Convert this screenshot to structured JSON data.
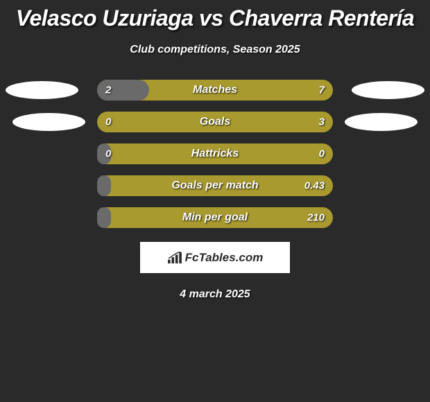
{
  "header": {
    "title": "Velasco Uzuriaga vs Chaverra Rentería",
    "subtitle": "Club competitions, Season 2025"
  },
  "colors": {
    "left": "#6a6a6a",
    "right": "#a89a2e",
    "background": "#2a2a2a"
  },
  "stats": [
    {
      "label": "Matches",
      "left_val": "2",
      "right_val": "7",
      "left_pct": 22,
      "right_pct": 78,
      "show_ellipses": true,
      "ellipse_class": ""
    },
    {
      "label": "Goals",
      "left_val": "0",
      "right_val": "3",
      "left_pct": 0,
      "right_pct": 100,
      "show_ellipses": true,
      "ellipse_class": "2"
    },
    {
      "label": "Hattricks",
      "left_val": "0",
      "right_val": "0",
      "left_pct": 6,
      "right_pct": 94,
      "show_ellipses": false
    },
    {
      "label": "Goals per match",
      "left_val": "",
      "right_val": "0.43",
      "left_pct": 6,
      "right_pct": 94,
      "show_ellipses": false
    },
    {
      "label": "Min per goal",
      "left_val": "",
      "right_val": "210",
      "left_pct": 6,
      "right_pct": 94,
      "show_ellipses": false
    }
  ],
  "brand": {
    "text": "FcTables.com"
  },
  "footer": {
    "date": "4 march 2025"
  }
}
